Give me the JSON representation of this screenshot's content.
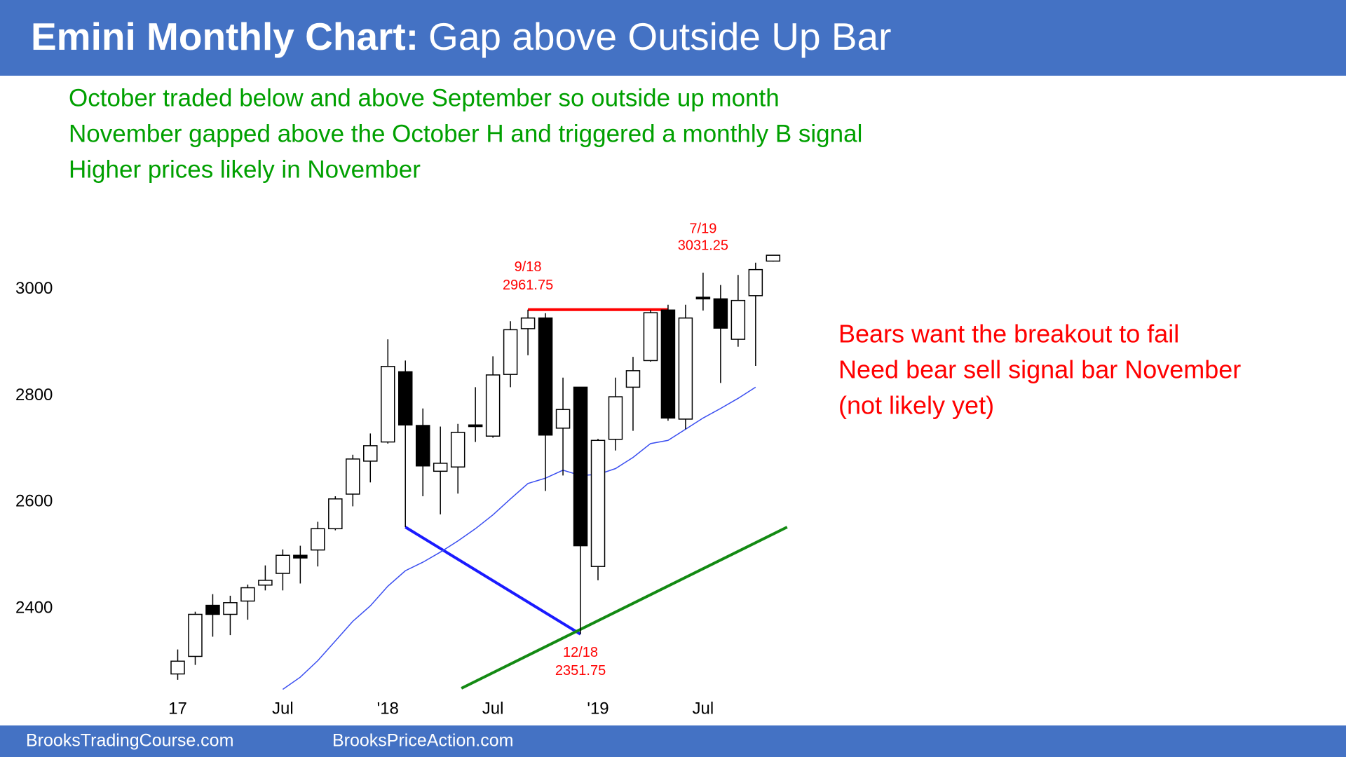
{
  "chart_data": {
    "type": "candlestick",
    "title": "Emini Monthly Chart:",
    "subtitle": "Gap above Outside Up Bar",
    "categories": [
      "17",
      null,
      null,
      null,
      null,
      null,
      "Jul",
      null,
      null,
      null,
      null,
      null,
      "'18",
      null,
      null,
      null,
      null,
      null,
      "Jul",
      null,
      null,
      null,
      null,
      null,
      "'19",
      null,
      null,
      null,
      null,
      null,
      "Jul",
      null,
      null,
      null,
      null
    ],
    "open": [
      2277,
      2310,
      2406,
      2389,
      2414,
      2444,
      2466,
      2500,
      2510,
      2550,
      2615,
      2677,
      2713,
      2845,
      2744,
      2658,
      2666,
      2745,
      2724,
      2840,
      2926,
      2946,
      2739,
      2816,
      2479,
      2718,
      2816,
      2866,
      2961,
      2756,
      2985,
      2982,
      2906,
      2988,
      3053
    ],
    "high": [
      2323,
      2394,
      2427,
      2424,
      2445,
      2481,
      2511,
      2518,
      2563,
      2611,
      2689,
      2729,
      2906,
      2866,
      2776,
      2742,
      2747,
      2816,
      2874,
      2940,
      2961.75,
      2955,
      2834,
      2816,
      2719,
      2834,
      2873,
      2961,
      2971,
      2971,
      3031.25,
      3008,
      3027,
      3050,
      3064
    ],
    "low": [
      2266,
      2294,
      2347,
      2350,
      2379,
      2434,
      2434,
      2447,
      2479,
      2547,
      2592,
      2637,
      2710,
      2553,
      2611,
      2577,
      2616,
      2713,
      2721,
      2816,
      2876,
      2621,
      2650,
      2351.75,
      2453,
      2697,
      2734,
      2864,
      2753,
      2737,
      2960,
      2824,
      2892,
      2856,
      3052
    ],
    "close": [
      2301,
      2389,
      2389,
      2411,
      2439,
      2453,
      2500,
      2495,
      2550,
      2606,
      2681,
      2706,
      2855,
      2745,
      2668,
      2673,
      2731,
      2742,
      2839,
      2924,
      2946,
      2726,
      2774,
      2518,
      2716,
      2798,
      2847,
      2956,
      2758,
      2946,
      2982,
      2927,
      2979,
      3037,
      3064
    ],
    "up_color": "#ffffff",
    "down_color": "#000000",
    "ma": {
      "color": "#3a4ef0",
      "values": [
        null,
        null,
        null,
        null,
        null,
        null,
        2248,
        2271,
        2302,
        2339,
        2376,
        2405,
        2442,
        2471,
        2487,
        2506,
        2527,
        2550,
        2576,
        2606,
        2635,
        2645,
        2660,
        2650,
        2652,
        2663,
        2684,
        2710,
        2716,
        2737,
        2758,
        2776,
        2795,
        2816,
        null
      ]
    },
    "lines": [
      {
        "color": "#ff0000",
        "x": [
          20,
          28
        ],
        "y": [
          2961.75,
          2961.75
        ]
      },
      {
        "color": "#1a1aff",
        "x": [
          13,
          23
        ],
        "y": [
          2553,
          2351.75
        ]
      },
      {
        "color": "#138a13",
        "x": [
          16.2,
          34.8
        ],
        "y": [
          2250,
          2553
        ]
      }
    ],
    "annotations": [
      {
        "date": "9/18",
        "price": 2961.75
      },
      {
        "date": "7/19",
        "price": 3031.25
      },
      {
        "date": "12/18",
        "price": 2351.75
      }
    ],
    "ylim": [
      2250,
      3080
    ],
    "yticks": [
      2400,
      2600,
      2800,
      3000
    ],
    "notes_left": [
      "October traded below and above September so outside up month",
      "November gapped above the October H and triggered a monthly B signal",
      "Higher prices likely in November"
    ],
    "notes_right": [
      "Bears want the breakout to fail",
      "Need bear sell signal bar November",
      "(not likely yet)"
    ]
  },
  "footer": [
    "BrooksTradingCourse.com",
    "BrooksPriceAction.com"
  ]
}
